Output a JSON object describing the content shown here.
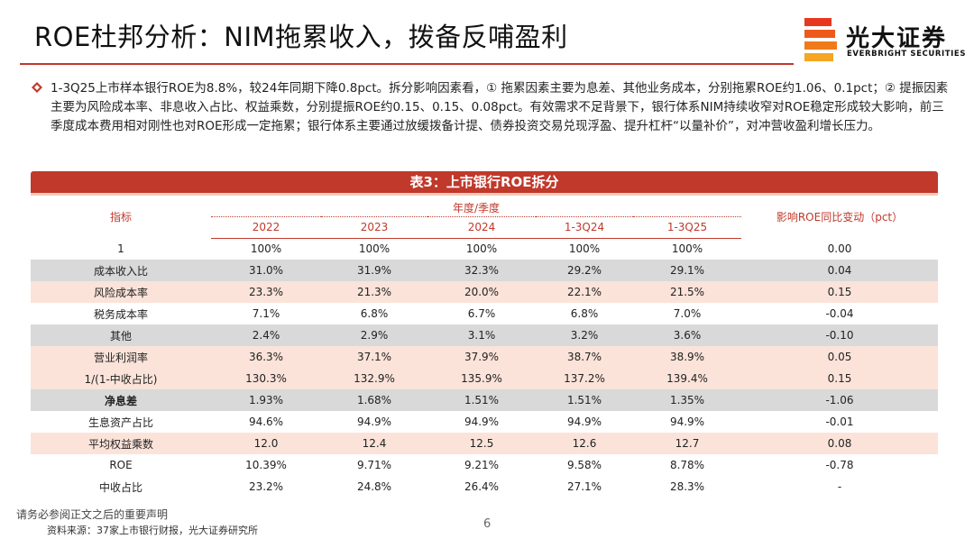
{
  "header": {
    "title": "ROE杜邦分析：NIM拖累收入，拨备反哺盈利"
  },
  "logo": {
    "cn": "光大证券",
    "en": "EVERBRIGHT SECURITIES",
    "colors": [
      "#e8371f",
      "#f07a1a",
      "#f5a623"
    ]
  },
  "summary": {
    "text": "1-3Q25上市样本银行ROE为8.8%，较24年同期下降0.8pct。拆分影响因素看，① 拖累因素主要为息差、其他业务成本，分别拖累ROE约1.06、0.1pct；② 提振因素主要为风险成本率、非息收入占比、权益乘数，分别提振ROE约0.15、0.15、0.08pct。有效需求不足背景下，银行体系NIM持续收窄对ROE稳定形成较大影响，前三季度成本费用相对刚性也对ROE形成一定拖累；银行体系主要通过放缓拨备计提、债券投资交易兑现浮盈、提升杠杆“以量补价”，对冲营收盈利增长压力。"
  },
  "table": {
    "title": "表3：上市银行ROE拆分",
    "col_indicator": "指标",
    "col_period_group": "年度/季度",
    "col_change": "影响ROE同比变动（pct）",
    "periods": [
      "2022",
      "2023",
      "2024",
      "1-3Q24",
      "1-3Q25"
    ],
    "rows": [
      {
        "label": "1",
        "values": [
          "100%",
          "100%",
          "100%",
          "100%",
          "100%"
        ],
        "change": "0.00"
      },
      {
        "label": "成本收入比",
        "values": [
          "31.0%",
          "31.9%",
          "32.3%",
          "29.2%",
          "29.1%"
        ],
        "change": "0.04"
      },
      {
        "label": "风险成本率",
        "values": [
          "23.3%",
          "21.3%",
          "20.0%",
          "22.1%",
          "21.5%"
        ],
        "change": "0.15"
      },
      {
        "label": "税务成本率",
        "values": [
          "7.1%",
          "6.8%",
          "6.7%",
          "6.8%",
          "7.0%"
        ],
        "change": "-0.04"
      },
      {
        "label": "其他",
        "values": [
          "2.4%",
          "2.9%",
          "3.1%",
          "3.2%",
          "3.6%"
        ],
        "change": "-0.10"
      },
      {
        "label": "营业利润率",
        "values": [
          "36.3%",
          "37.1%",
          "37.9%",
          "38.7%",
          "38.9%"
        ],
        "change": "0.05"
      },
      {
        "label": "1/(1-中收占比)",
        "values": [
          "130.3%",
          "132.9%",
          "135.9%",
          "137.2%",
          "139.4%"
        ],
        "change": "0.15"
      },
      {
        "label": "净息差",
        "values": [
          "1.93%",
          "1.68%",
          "1.51%",
          "1.51%",
          "1.35%"
        ],
        "change": "-1.06"
      },
      {
        "label": "生息资产占比",
        "values": [
          "94.6%",
          "94.9%",
          "94.9%",
          "94.9%",
          "94.9%"
        ],
        "change": "-0.01"
      },
      {
        "label": "平均权益乘数",
        "values": [
          "12.0",
          "12.4",
          "12.5",
          "12.6",
          "12.7"
        ],
        "change": "0.08"
      },
      {
        "label": "ROE",
        "values": [
          "10.39%",
          "9.71%",
          "9.21%",
          "9.58%",
          "8.78%"
        ],
        "change": "-0.78"
      },
      {
        "label": "中收占比",
        "values": [
          "23.2%",
          "24.8%",
          "26.4%",
          "27.1%",
          "28.3%"
        ],
        "change": "-"
      }
    ]
  },
  "footer": {
    "note": "请务必参阅正文之后的重要声明",
    "source": "资料来源：37家上市银行财报，光大证券研究所",
    "page": "6"
  }
}
